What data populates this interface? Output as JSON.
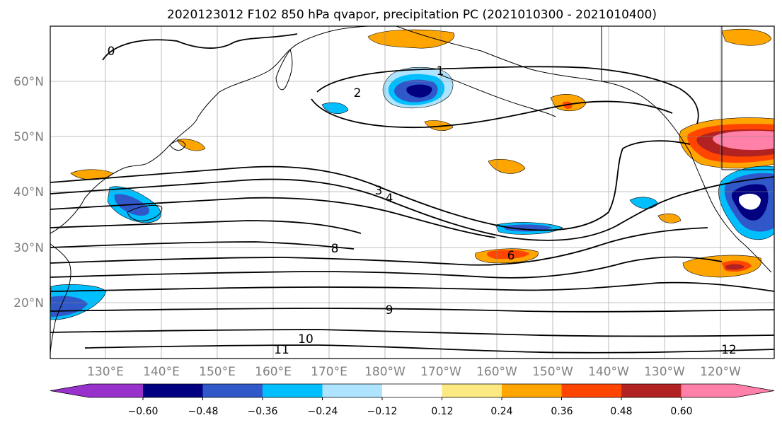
{
  "title": "2020123012 F102 850 hPa qvapor, precipitation PC (2021010300 - 2021010400)",
  "map": {
    "projection": "PlateCarree",
    "lon_range": [
      120,
      255
    ],
    "lat_range": [
      10,
      70
    ],
    "lat_labels": [
      "20°N",
      "30°N",
      "40°N",
      "50°N",
      "60°N"
    ],
    "lon_labels": [
      "130°E",
      "140°E",
      "150°E",
      "160°E",
      "170°E",
      "180°W",
      "170°W",
      "160°W",
      "150°W",
      "140°W",
      "130°W",
      "120°W"
    ],
    "gridlines": true,
    "coastlines": true
  },
  "contours": {
    "variable": "850 hPa qvapor",
    "labels": [
      "0",
      "1",
      "2",
      "3",
      "4",
      "6",
      "8",
      "9",
      "10",
      "11",
      "12"
    ]
  },
  "colorbar": {
    "orientation": "horizontal",
    "extend": "both",
    "tick_labels": [
      "−0.60",
      "−0.48",
      "−0.36",
      "−0.24",
      "−0.12",
      "0.12",
      "0.24",
      "0.36",
      "0.48",
      "0.60"
    ],
    "colors": [
      "#9932cc",
      "#000080",
      "#3158c9",
      "#00bfff",
      "#aee4ff",
      "#ffffff",
      "#fde981",
      "#ffa500",
      "#ff4500",
      "#b22222",
      "#ff80a8"
    ]
  }
}
